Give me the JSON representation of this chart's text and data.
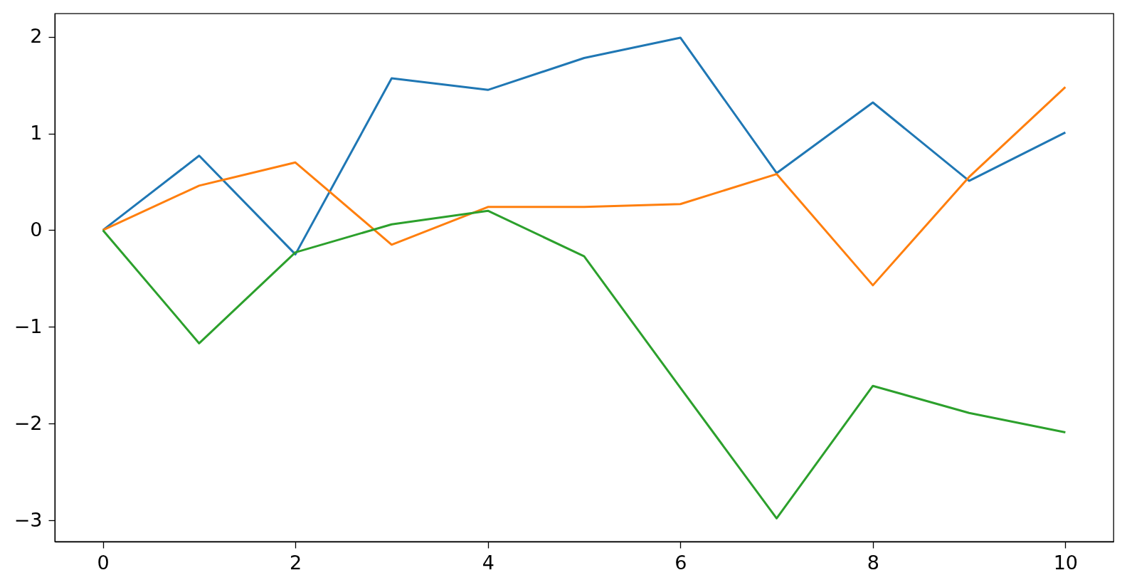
{
  "chart_data": {
    "type": "line",
    "x": [
      0,
      1,
      2,
      3,
      4,
      5,
      6,
      7,
      8,
      9,
      10
    ],
    "series": [
      {
        "color": "#1f77b4",
        "values": [
          0,
          0.77,
          -0.25,
          1.57,
          1.45,
          1.78,
          1.99,
          0.59,
          1.32,
          0.51,
          1.01
        ]
      },
      {
        "color": "#ff7f0e",
        "values": [
          0,
          0.46,
          0.7,
          -0.15,
          0.24,
          0.24,
          0.27,
          0.58,
          -0.57,
          0.55,
          1.48
        ]
      },
      {
        "color": "#2ca02c",
        "values": [
          0,
          -1.17,
          -0.23,
          0.06,
          0.2,
          -0.27,
          -1.63,
          -2.98,
          -1.61,
          -1.89,
          -2.09
        ]
      }
    ],
    "xlim": [
      -0.5,
      10.5
    ],
    "xticks": [
      0,
      2,
      4,
      6,
      8,
      10
    ],
    "ylim": [
      -3.22,
      2.24
    ],
    "yticks": [
      {
        "value": -3,
        "label": "−3"
      },
      {
        "value": -2,
        "label": "−2"
      },
      {
        "value": -1,
        "label": "−1"
      },
      0,
      1,
      2
    ],
    "grid": false
  }
}
